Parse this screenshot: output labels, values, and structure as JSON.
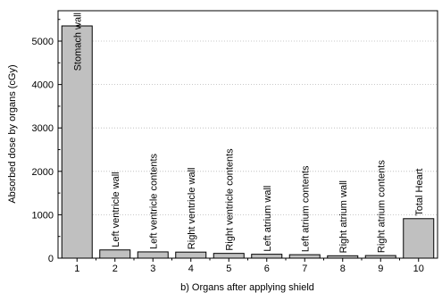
{
  "chart_data": {
    "type": "bar",
    "title": "",
    "xlabel": "b) Organs after applying shield",
    "ylabel": "Absorbed dose by organs (cGy)",
    "categories": [
      "1",
      "2",
      "3",
      "4",
      "5",
      "6",
      "7",
      "8",
      "9",
      "10"
    ],
    "values": [
      5350,
      190,
      145,
      140,
      110,
      90,
      80,
      55,
      60,
      910
    ],
    "bar_labels": [
      "Stomach wall",
      "Left ventricle wall",
      "Left ventricle contents",
      "Right ventricle wall",
      "Right ventricle contents",
      "Left atrium wall",
      "Left atrium contents",
      "Right atrium wall",
      "Right atrium contents",
      "Total Heart"
    ],
    "ylim": [
      0,
      5700
    ],
    "yticks": [
      0,
      1000,
      2000,
      3000,
      4000,
      5000
    ],
    "grid": "horizontal dotted",
    "bar_color": "#c0c0c0"
  }
}
